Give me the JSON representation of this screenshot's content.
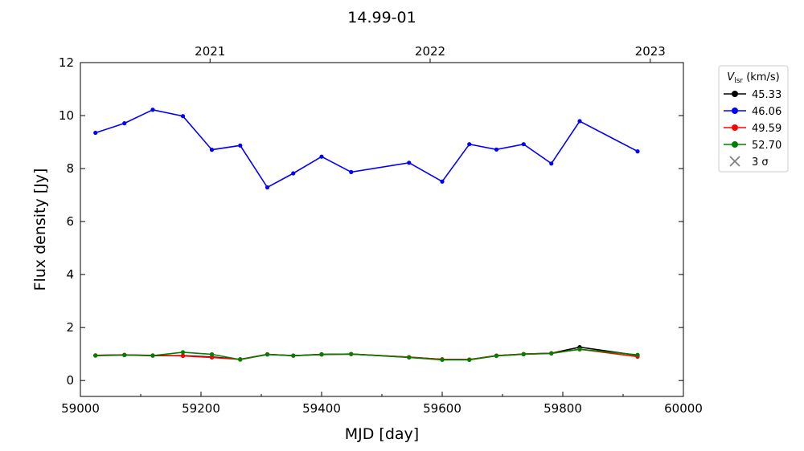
{
  "chart_data": {
    "type": "line",
    "title": "14.99-01",
    "xlabel": "MJD [day]",
    "ylabel": "Flux density [Jy]",
    "xlim": [
      59000,
      60000
    ],
    "ylim": [
      -0.6,
      12
    ],
    "xticks": [
      59000,
      59200,
      59400,
      59600,
      59800,
      60000
    ],
    "yticks": [
      0,
      2,
      4,
      6,
      8,
      10,
      12
    ],
    "top_axis": {
      "ticks": [
        {
          "mjd": 59215,
          "label": "2021"
        },
        {
          "mjd": 59580,
          "label": "2022"
        },
        {
          "mjd": 59945,
          "label": "2023"
        }
      ]
    },
    "grid": false,
    "legend": {
      "placement": "outside-right",
      "title_main": "V",
      "title_sub": "lsr",
      "title_unit": " (km/s)",
      "sigma_label": "3 σ",
      "sigma_color": "#808080"
    },
    "x": [
      59025,
      59073,
      59120,
      59170,
      59218,
      59265,
      59310,
      59353,
      59400,
      59449,
      59545,
      59600,
      59645,
      59690,
      59735,
      59781,
      59828,
      59924
    ],
    "series": [
      {
        "name": "45.33",
        "color": "#000000",
        "values": [
          0.95,
          0.97,
          0.94,
          0.94,
          0.89,
          0.8,
          0.99,
          0.94,
          0.99,
          1.0,
          0.88,
          0.8,
          0.79,
          0.94,
          1.0,
          1.03,
          1.26,
          0.95
        ]
      },
      {
        "name": "46.06",
        "color": "#0000ff",
        "values": [
          9.35,
          9.71,
          10.22,
          9.98,
          8.71,
          8.87,
          7.29,
          7.82,
          8.45,
          7.87,
          8.22,
          7.51,
          8.92,
          8.72,
          8.92,
          8.19,
          9.79,
          8.65
        ]
      },
      {
        "name": "49.59",
        "color": "#ff0000",
        "values": [
          0.95,
          0.97,
          0.95,
          0.93,
          0.87,
          0.8,
          0.99,
          0.94,
          0.98,
          1.0,
          0.88,
          0.8,
          0.79,
          0.94,
          1.0,
          1.03,
          1.18,
          0.9
        ]
      },
      {
        "name": "52.70",
        "color": "#008000",
        "values": [
          0.94,
          0.96,
          0.94,
          1.07,
          0.99,
          0.79,
          0.98,
          0.94,
          0.98,
          1.0,
          0.87,
          0.78,
          0.78,
          0.93,
          0.99,
          1.02,
          1.18,
          0.97
        ]
      }
    ]
  }
}
